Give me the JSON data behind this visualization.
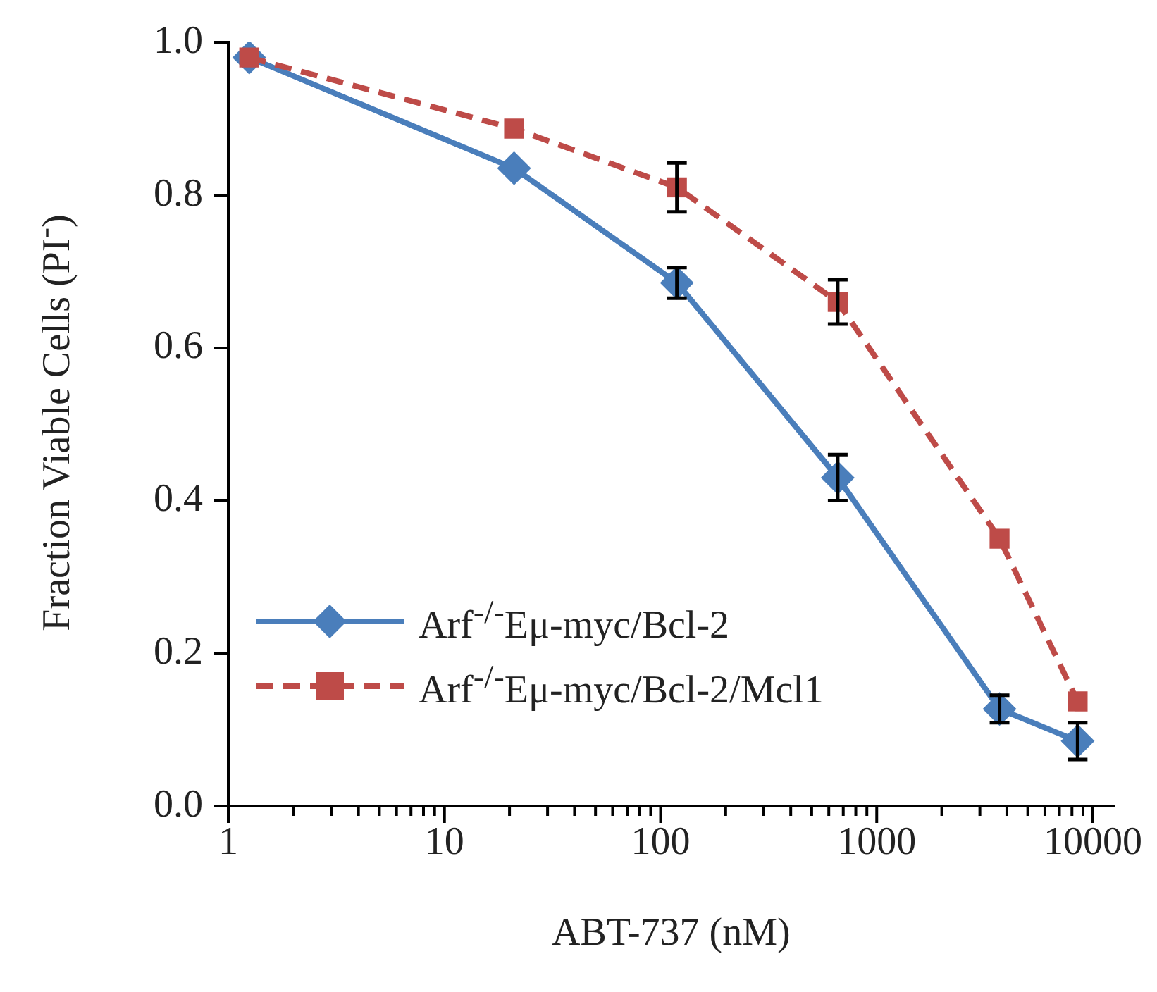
{
  "chart_data": {
    "type": "line",
    "xlabel": "ABT-737 (nM)",
    "ylabel": "Fraction Viable Cells (PI$^{-}$)",
    "log": "x",
    "xlim": [
      1,
      12500
    ],
    "ylim": [
      0,
      1
    ],
    "xticks": [
      1,
      {
        "value": 2,
        "label": null
      },
      {
        "value": 3,
        "label": null
      },
      {
        "value": 4,
        "label": null
      },
      {
        "value": 5,
        "label": null
      },
      {
        "value": 6,
        "label": null
      },
      {
        "value": 7,
        "label": null
      },
      {
        "value": 8,
        "label": null
      },
      {
        "value": 9,
        "label": null
      },
      10,
      {
        "value": 20,
        "label": null
      },
      {
        "value": 30,
        "label": null
      },
      {
        "value": 40,
        "label": null
      },
      {
        "value": 50,
        "label": null
      },
      {
        "value": 60,
        "label": null
      },
      {
        "value": 70,
        "label": null
      },
      {
        "value": 80,
        "label": null
      },
      {
        "value": 90,
        "label": null
      },
      100,
      {
        "value": 200,
        "label": null
      },
      {
        "value": 300,
        "label": null
      },
      {
        "value": 400,
        "label": null
      },
      {
        "value": 500,
        "label": null
      },
      {
        "value": 600,
        "label": null
      },
      {
        "value": 700,
        "label": null
      },
      {
        "value": 800,
        "label": null
      },
      {
        "value": 900,
        "label": null
      },
      1000,
      {
        "value": 2000,
        "label": null
      },
      {
        "value": 3000,
        "label": null
      },
      {
        "value": 4000,
        "label": null
      },
      {
        "value": 5000,
        "label": null
      },
      {
        "value": 6000,
        "label": null
      },
      {
        "value": 7000,
        "label": null
      },
      {
        "value": 8000,
        "label": null
      },
      {
        "value": 9000,
        "label": null
      },
      10000
    ],
    "yticks": [
      {
        "value": 0,
        "label": "0.0"
      },
      0.2,
      0.4,
      0.6,
      0.8,
      {
        "value": 1,
        "label": "1.0"
      }
    ],
    "grid": false,
    "legend": "bottom left",
    "series": [
      {
        "name": "Arf$^{-/-}$Eμ-myc/Bcl-2",
        "color": "#4a7ebb",
        "marker": "diamond",
        "line_style": "solid",
        "x": [
          1.25,
          21,
          119,
          660,
          3700,
          8500
        ],
        "values": [
          0.98,
          0.835,
          0.685,
          0.43,
          0.127,
          0.085
        ],
        "errors": [
          null,
          null,
          0.02,
          0.03,
          0.018,
          0.024
        ]
      },
      {
        "name": "Arf$^{-/-}$Eμ-myc/Bcl-2/Mcl1",
        "color": "#be4b48",
        "marker": "square",
        "line_style": "dashed",
        "x": [
          1.25,
          21,
          119,
          660,
          3700,
          8500
        ],
        "values": [
          0.98,
          0.887,
          0.81,
          0.66,
          0.35,
          0.137
        ],
        "errors": [
          null,
          null,
          0.032,
          0.029,
          null,
          null
        ]
      }
    ]
  }
}
